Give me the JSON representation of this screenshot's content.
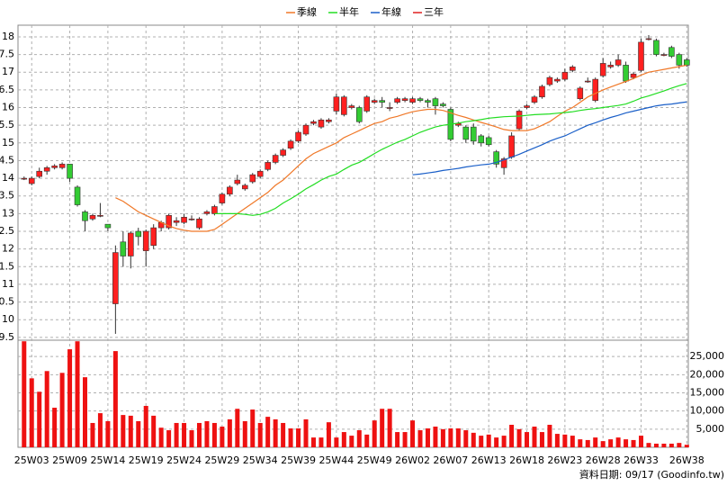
{
  "chart_data": {
    "type": "candlestick",
    "categories": [
      null,
      "25W03",
      null,
      null,
      null,
      null,
      "25W09",
      null,
      null,
      null,
      null,
      "25W14",
      null,
      null,
      null,
      null,
      "25W19",
      null,
      null,
      null,
      null,
      "25W24",
      null,
      null,
      null,
      null,
      "25W29",
      null,
      null,
      null,
      null,
      "25W34",
      null,
      null,
      null,
      null,
      "25W39",
      null,
      null,
      null,
      null,
      "25W44",
      null,
      null,
      null,
      null,
      "25W49",
      null,
      null,
      null,
      null,
      "26W02",
      null,
      null,
      null,
      null,
      "26W07",
      null,
      null,
      null,
      null,
      "26W13",
      null,
      null,
      null,
      null,
      "26W18",
      null,
      null,
      null,
      null,
      "26W23",
      null,
      null,
      null,
      null,
      "26W28",
      null,
      null,
      null,
      null,
      "26W33",
      null,
      null,
      null,
      null,
      null,
      "26W38"
    ],
    "open": [
      14.0,
      13.85,
      14.05,
      14.2,
      14.3,
      14.3,
      14.4,
      13.75,
      13.05,
      12.85,
      12.95,
      12.7,
      10.45,
      12.2,
      11.8,
      12.5,
      11.95,
      12.1,
      12.6,
      12.6,
      12.75,
      12.75,
      12.85,
      12.6,
      13.0,
      13.0,
      13.3,
      13.55,
      13.85,
      13.7,
      13.9,
      14.05,
      14.25,
      14.45,
      14.65,
      14.85,
      15.05,
      15.25,
      15.55,
      15.45,
      15.6,
      15.9,
      15.8,
      16.0,
      16.0,
      15.9,
      16.15,
      16.2,
      16.0,
      16.15,
      16.2,
      16.15,
      16.25,
      16.2,
      16.25,
      16.1,
      15.95,
      15.5,
      15.45,
      15.45,
      15.2,
      15.15,
      14.75,
      14.3,
      14.6,
      15.4,
      16.0,
      16.15,
      16.3,
      16.65,
      16.75,
      16.8,
      17.05,
      16.25,
      16.75,
      16.2,
      16.9,
      17.15,
      17.2,
      17.2,
      16.85,
      17.05,
      17.95,
      17.9,
      17.5,
      17.7,
      17.5,
      17.35
    ],
    "high": [
      14.05,
      14.05,
      14.3,
      14.35,
      14.4,
      14.45,
      14.4,
      13.8,
      13.1,
      13.0,
      13.3,
      12.7,
      12.1,
      12.5,
      12.5,
      12.6,
      12.55,
      12.7,
      12.8,
      13.0,
      12.9,
      13.0,
      12.95,
      12.9,
      13.1,
      13.25,
      13.6,
      13.8,
      14.1,
      13.85,
      14.15,
      14.25,
      14.5,
      14.7,
      14.85,
      15.1,
      15.35,
      15.55,
      15.65,
      15.7,
      15.7,
      16.4,
      16.35,
      16.1,
      16.05,
      16.35,
      16.25,
      16.3,
      16.15,
      16.3,
      16.3,
      16.3,
      16.3,
      16.25,
      16.3,
      16.15,
      16.0,
      15.6,
      15.5,
      15.55,
      15.25,
      15.2,
      14.8,
      14.6,
      15.3,
      15.95,
      16.1,
      16.35,
      16.65,
      16.9,
      16.85,
      17.1,
      17.2,
      16.6,
      16.85,
      16.85,
      17.4,
      17.3,
      17.5,
      17.3,
      17.0,
      17.95,
      18.05,
      17.95,
      17.55,
      17.75,
      17.55,
      17.4
    ],
    "low": [
      13.95,
      13.8,
      14.0,
      14.1,
      14.25,
      14.25,
      13.9,
      13.2,
      12.5,
      12.8,
      12.9,
      12.5,
      9.6,
      11.5,
      11.45,
      12.1,
      11.5,
      12.0,
      12.5,
      12.55,
      12.65,
      12.7,
      12.8,
      12.55,
      12.95,
      12.95,
      13.25,
      13.5,
      13.8,
      13.65,
      13.85,
      14.0,
      14.2,
      14.4,
      14.6,
      14.8,
      15.0,
      15.2,
      15.5,
      15.4,
      15.55,
      15.8,
      15.75,
      15.95,
      15.55,
      15.85,
      16.1,
      16.0,
      15.9,
      16.1,
      16.15,
      16.1,
      16.15,
      16.0,
      15.8,
      16.0,
      15.05,
      15.45,
      15.0,
      14.95,
      14.9,
      14.9,
      14.3,
      14.1,
      14.55,
      15.35,
      15.95,
      16.1,
      16.25,
      16.6,
      16.7,
      16.75,
      17.0,
      16.2,
      16.7,
      16.15,
      16.85,
      17.1,
      17.15,
      16.7,
      16.8,
      17.0,
      17.9,
      17.45,
      17.45,
      17.4,
      17.1,
      17.15
    ],
    "close": [
      14.0,
      14.0,
      14.2,
      14.3,
      14.35,
      14.4,
      14.0,
      13.25,
      12.8,
      12.95,
      12.95,
      12.6,
      11.9,
      11.8,
      12.45,
      12.35,
      12.5,
      12.6,
      12.75,
      12.95,
      12.8,
      12.9,
      12.85,
      12.85,
      13.05,
      13.2,
      13.55,
      13.75,
      13.95,
      13.8,
      14.1,
      14.2,
      14.45,
      14.65,
      14.8,
      15.05,
      15.3,
      15.5,
      15.6,
      15.65,
      15.65,
      16.3,
      16.3,
      16.05,
      15.6,
      16.3,
      16.2,
      16.15,
      16.0,
      16.25,
      16.25,
      16.25,
      16.2,
      16.15,
      16.05,
      16.05,
      15.1,
      15.55,
      15.1,
      15.05,
      15.0,
      14.95,
      14.4,
      14.55,
      15.2,
      15.9,
      16.05,
      16.3,
      16.6,
      16.85,
      16.8,
      17.0,
      17.15,
      16.55,
      16.75,
      16.8,
      17.25,
      17.2,
      17.35,
      16.75,
      16.95,
      17.85,
      17.95,
      17.5,
      17.5,
      17.45,
      17.2,
      17.2
    ],
    "up_color": "#ff2020",
    "down_color": "#33cc33",
    "volume": [
      29200,
      19000,
      15300,
      21000,
      10900,
      20500,
      27000,
      29200,
      19300,
      6700,
      9400,
      7200,
      26500,
      8900,
      8700,
      7200,
      11400,
      8700,
      5400,
      4700,
      6700,
      6700,
      4700,
      6700,
      7200,
      6700,
      5700,
      7700,
      10600,
      7200,
      10400,
      6700,
      8400,
      7700,
      6700,
      5200,
      5200,
      7700,
      2700,
      2700,
      6900,
      2700,
      4200,
      3200,
      4700,
      3500,
      7400,
      10600,
      10600,
      4200,
      4200,
      7400,
      4700,
      5200,
      5700,
      5000,
      5200,
      5200,
      4700,
      4000,
      3200,
      3500,
      2700,
      3200,
      6200,
      5000,
      4200,
      5700,
      4200,
      6200,
      3700,
      3500,
      3200,
      2200,
      2000,
      2700,
      1700,
      2200,
      2700,
      2200,
      2000,
      3200,
      1200,
      1000,
      1000,
      1000,
      1200,
      700
    ],
    "volume_color": "#ee1111",
    "series": [
      {
        "name": "季線",
        "color": "#f07828",
        "values": [
          null,
          null,
          null,
          null,
          null,
          null,
          null,
          null,
          null,
          null,
          null,
          null,
          13.45,
          13.35,
          13.2,
          13.05,
          12.95,
          12.85,
          12.75,
          12.65,
          12.58,
          12.53,
          12.5,
          12.5,
          12.5,
          12.55,
          12.7,
          12.85,
          13.0,
          13.15,
          13.3,
          13.45,
          13.6,
          13.8,
          13.95,
          14.15,
          14.35,
          14.55,
          14.7,
          14.8,
          14.9,
          15.0,
          15.15,
          15.25,
          15.35,
          15.45,
          15.55,
          15.6,
          15.7,
          15.75,
          15.82,
          15.88,
          15.92,
          15.95,
          15.95,
          15.92,
          15.85,
          15.78,
          15.72,
          15.65,
          15.58,
          15.52,
          15.45,
          15.38,
          15.35,
          15.35,
          15.35,
          15.4,
          15.5,
          15.6,
          15.75,
          15.9,
          16.0,
          16.15,
          16.3,
          16.4,
          16.5,
          16.58,
          16.66,
          16.74,
          16.82,
          16.92,
          17.0,
          17.04,
          17.08,
          17.12,
          17.16,
          17.2
        ]
      },
      {
        "name": "半年",
        "color": "#22dd22",
        "values": [
          null,
          null,
          null,
          null,
          null,
          null,
          null,
          null,
          null,
          null,
          null,
          null,
          null,
          null,
          null,
          null,
          null,
          null,
          null,
          null,
          null,
          null,
          null,
          null,
          null,
          13.0,
          13.0,
          13.0,
          13.0,
          12.98,
          12.95,
          12.98,
          13.05,
          13.15,
          13.3,
          13.42,
          13.55,
          13.7,
          13.82,
          13.95,
          14.05,
          14.12,
          14.25,
          14.37,
          14.45,
          14.57,
          14.7,
          14.82,
          14.92,
          15.02,
          15.1,
          15.2,
          15.3,
          15.38,
          15.45,
          15.5,
          15.53,
          15.56,
          15.6,
          15.63,
          15.66,
          15.7,
          15.72,
          15.74,
          15.75,
          15.76,
          15.78,
          15.8,
          15.81,
          15.82,
          15.84,
          15.86,
          15.88,
          15.92,
          15.95,
          15.97,
          16.0,
          16.03,
          16.06,
          16.1,
          16.18,
          16.27,
          16.33,
          16.4,
          16.47,
          16.55,
          16.62,
          16.68
        ]
      },
      {
        "name": "年線",
        "color": "#1a5fc8",
        "values": [
          null,
          null,
          null,
          null,
          null,
          null,
          null,
          null,
          null,
          null,
          null,
          null,
          null,
          null,
          null,
          null,
          null,
          null,
          null,
          null,
          null,
          null,
          null,
          null,
          null,
          null,
          null,
          null,
          null,
          null,
          null,
          null,
          null,
          null,
          null,
          null,
          null,
          null,
          null,
          null,
          null,
          null,
          null,
          null,
          null,
          null,
          null,
          null,
          null,
          null,
          null,
          14.1,
          14.12,
          14.15,
          14.18,
          14.22,
          14.25,
          14.28,
          14.32,
          14.35,
          14.38,
          14.4,
          14.45,
          14.52,
          14.6,
          14.68,
          14.77,
          14.86,
          14.95,
          15.05,
          15.13,
          15.2,
          15.3,
          15.4,
          15.5,
          15.57,
          15.65,
          15.72,
          15.78,
          15.85,
          15.9,
          15.95,
          16.0,
          16.05,
          16.08,
          16.1,
          16.13,
          16.16
        ]
      },
      {
        "name": "三年",
        "color": "#e02020",
        "values": [
          null,
          null,
          null,
          null,
          null,
          null,
          null,
          null,
          null,
          null,
          null,
          null,
          null,
          null,
          null,
          null,
          null,
          null,
          null,
          null,
          null,
          null,
          null,
          null,
          null,
          null,
          null,
          null,
          null,
          null,
          null,
          null,
          null,
          null,
          null,
          null,
          null,
          null,
          null,
          null,
          null,
          null,
          null,
          null,
          null,
          null,
          null,
          null,
          null,
          null,
          null,
          null,
          null,
          null,
          null,
          null,
          null,
          null,
          null,
          null,
          null,
          null,
          null,
          null,
          null,
          null,
          null,
          null,
          null,
          null,
          null,
          null,
          null,
          null,
          null,
          null,
          null,
          null,
          null,
          null,
          null,
          null,
          null,
          null,
          null,
          null,
          null,
          null
        ]
      }
    ],
    "ylim": [
      9.42,
      18.33
    ],
    "yticks": [
      9.5,
      10,
      10.5,
      11,
      11.5,
      12,
      12.5,
      13,
      13.5,
      14,
      14.5,
      15,
      15.5,
      16,
      16.5,
      17,
      17.5,
      18
    ],
    "y2lim": [
      0,
      29500
    ],
    "y2ticks": [
      {
        "value": 5000,
        "label": "5,000"
      },
      {
        "value": 10000,
        "label": "10,000"
      },
      {
        "value": 15000,
        "label": "15,000"
      },
      {
        "value": 20000,
        "label": "20,000"
      },
      {
        "value": 25000,
        "label": "25,000"
      }
    ],
    "grid": true,
    "legend": "top",
    "note": "資料日期: 09/17 (Goodinfo.tw)"
  }
}
